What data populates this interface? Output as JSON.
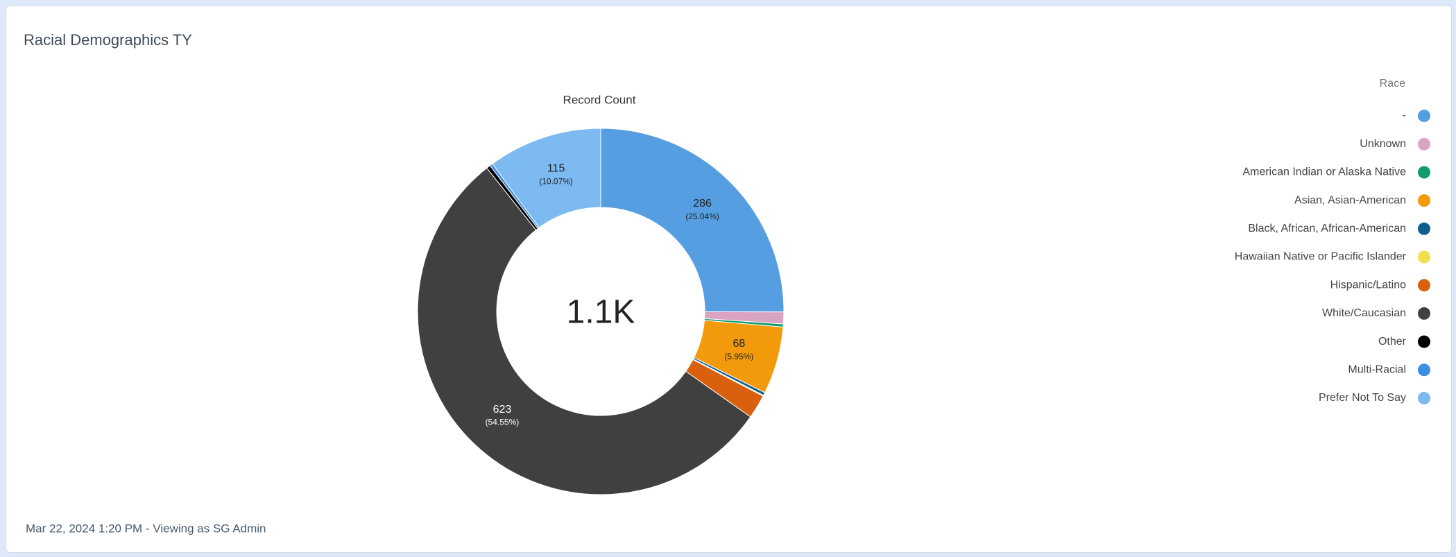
{
  "chart_data": {
    "type": "donut",
    "title": "Racial Demographics TY",
    "subtitle": "Record Count",
    "center_label": "1.1K",
    "legend_title": "Race",
    "legend": "right",
    "footer": "Mar 22, 2024 1:20 PM - Viewing as SG Admin",
    "categories": [
      "-",
      "Unknown",
      "American Indian or Alaska Native",
      "Asian, Asian-American",
      "Black, African, African-American",
      "Hawaiian Native or Pacific Islander",
      "Hispanic/Latino",
      "White/Caucasian",
      "Other",
      "Multi-Racial",
      "Prefer Not To Say"
    ],
    "values": [
      286,
      12,
      3,
      68,
      3,
      1,
      24,
      623,
      4,
      3,
      115
    ],
    "percent_labels": [
      "(25.04%)",
      null,
      null,
      "(5.95%)",
      null,
      null,
      null,
      "(54.55%)",
      null,
      null,
      "(10.07%)"
    ],
    "colors": [
      "#559ee2",
      "#dba3c2",
      "#109c6c",
      "#f29a0c",
      "#0c5f8f",
      "#f1e04c",
      "#d9600f",
      "#404040",
      "#000000",
      "#3b8fe2",
      "#7cbaf1"
    ]
  }
}
